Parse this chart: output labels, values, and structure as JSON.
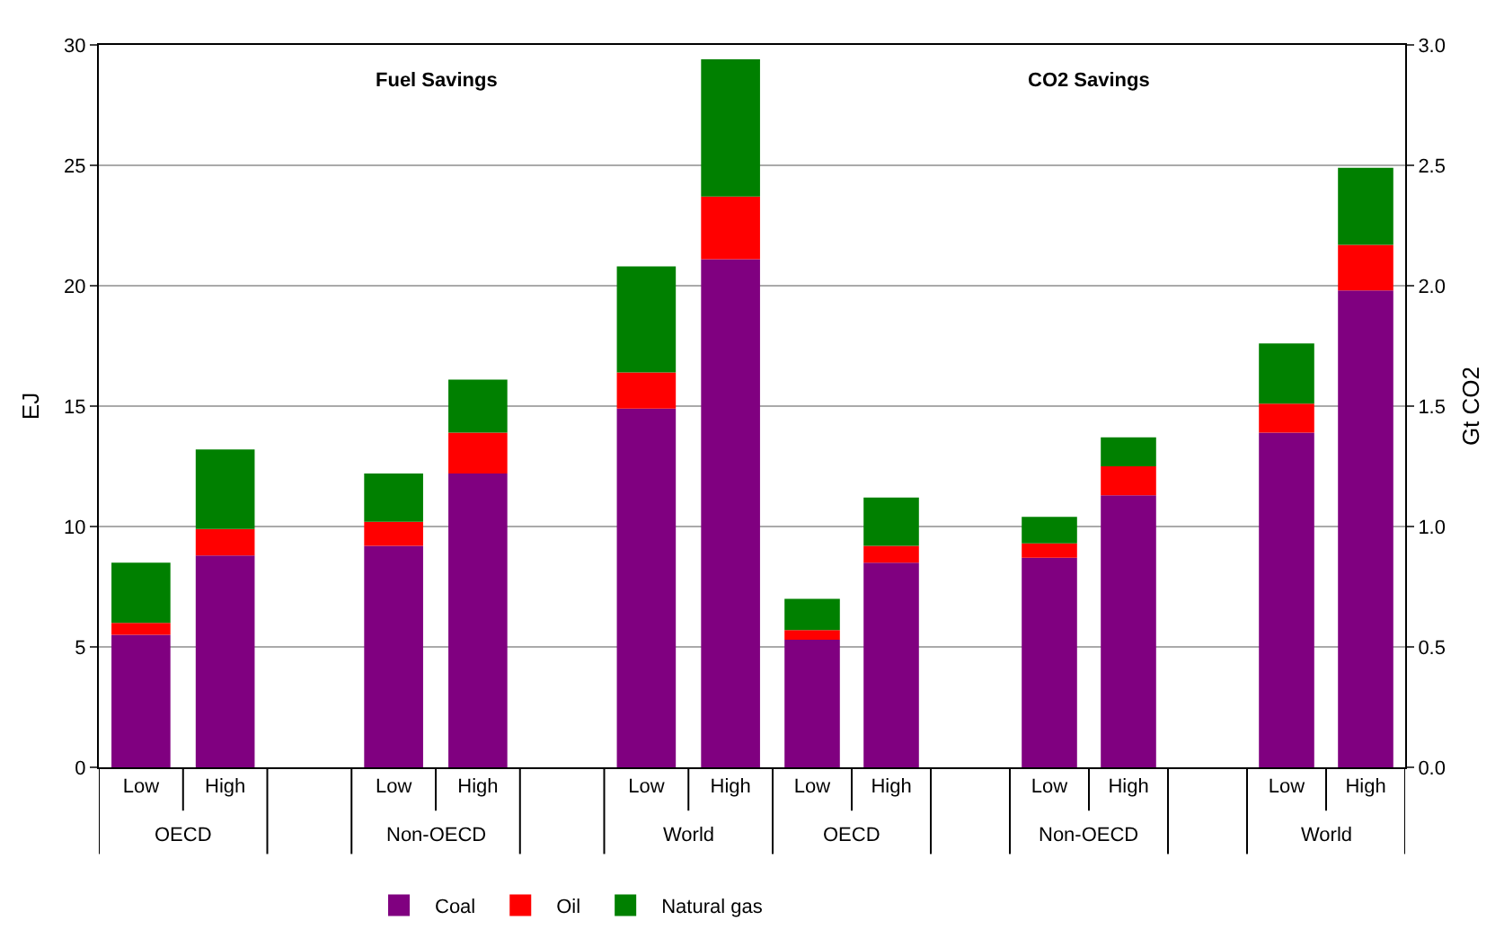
{
  "chart_data": [
    {
      "type": "bar",
      "title": "Fuel Savings",
      "ylabel": "EJ",
      "stacked": true,
      "grid": "y",
      "legend": "bottom",
      "categories": [
        "Low",
        "High",
        null,
        "Low",
        "High",
        null,
        "Low",
        "High"
      ],
      "ylim": [
        0,
        30
      ],
      "yticks": [
        0,
        5,
        10,
        15,
        20,
        25,
        30
      ],
      "annotations": [
        "OECD",
        "Non-OECD",
        "World"
      ],
      "series": [
        {
          "name": "Coal",
          "color": "#800080",
          "values": [
            5.5,
            8.8,
            null,
            9.2,
            12.2,
            null,
            14.9,
            21.1
          ]
        },
        {
          "name": "Oil",
          "color": "#ff0000",
          "values": [
            0.5,
            1.1,
            null,
            1.0,
            1.7,
            null,
            1.5,
            2.6
          ]
        },
        {
          "name": "Natural gas",
          "color": "#008000",
          "values": [
            2.5,
            3.3,
            null,
            2.0,
            2.2,
            null,
            4.4,
            5.7
          ]
        }
      ]
    },
    {
      "type": "bar",
      "title": "CO2 Savings",
      "y2label": "Gt CO2",
      "stacked": true,
      "grid": "y",
      "legend": false,
      "categories": [
        "Low",
        "High",
        null,
        "Low",
        "High",
        null,
        "Low",
        "High"
      ],
      "y2lim": [
        0,
        3.0
      ],
      "y2ticks": [
        {
          "value": 0,
          "label": "0.0"
        },
        {
          "value": 0.5,
          "label": "0.5"
        },
        {
          "value": 1,
          "label": "1.0"
        },
        {
          "value": 1.5,
          "label": "1.5"
        },
        {
          "value": 2,
          "label": "2.0"
        },
        {
          "value": 2.5,
          "label": "2.5"
        },
        {
          "value": 3,
          "label": "3.0"
        }
      ],
      "annotations": [
        "OECD",
        "Non-OECD",
        "World"
      ],
      "series": [
        {
          "color": "#800080",
          "axis": "y2",
          "values": [
            0.53,
            0.85,
            null,
            0.87,
            1.13,
            null,
            1.39,
            1.98
          ]
        },
        {
          "color": "#ff0000",
          "axis": "y2",
          "values": [
            0.04,
            0.07,
            null,
            0.06,
            0.12,
            null,
            0.12,
            0.19
          ]
        },
        {
          "color": "#008000",
          "axis": "y2",
          "values": [
            0.13,
            0.2,
            null,
            0.11,
            0.12,
            null,
            0.25,
            0.32
          ]
        }
      ]
    }
  ]
}
